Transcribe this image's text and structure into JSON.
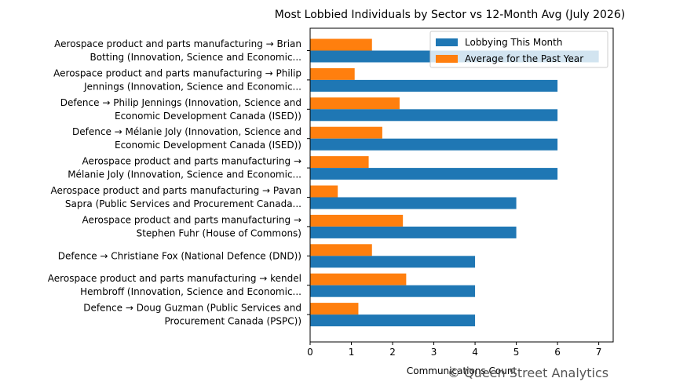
{
  "chart_data": {
    "type": "bar",
    "orientation": "horizontal",
    "title": "Most Lobbied Individuals by Sector vs 12-Month Avg (July 2026)",
    "xlabel": "Communications Count",
    "ylabel": "",
    "xlim": [
      0,
      7.35
    ],
    "xticks": [
      0,
      1,
      2,
      3,
      4,
      5,
      6,
      7
    ],
    "grid": false,
    "legend_position": "top-right",
    "categories": [
      [
        "Aerospace product and parts manufacturing → Brian",
        "Botting (Innovation, Science and Economic..."
      ],
      [
        "Aerospace product and parts manufacturing → Philip",
        "Jennings (Innovation, Science and Economic..."
      ],
      [
        "Defence → Philip Jennings (Innovation, Science and",
        "Economic Development Canada (ISED))"
      ],
      [
        "Defence → Mélanie Joly (Innovation, Science and",
        "Economic Development Canada (ISED))"
      ],
      [
        "Aerospace product and parts manufacturing →",
        "Mélanie Joly (Innovation, Science and Economic..."
      ],
      [
        "Aerospace product and parts manufacturing → Pavan",
        "Sapra (Public Services and Procurement Canada..."
      ],
      [
        "Aerospace product and parts manufacturing →",
        "Stephen Fuhr (House of Commons)"
      ],
      [
        "Defence → Christiane Fox (National Defence (DND))"
      ],
      [
        "Aerospace product and parts manufacturing → kendel",
        "Hembroff (Innovation, Science and Economic..."
      ],
      [
        "Defence → Doug  Guzman (Public Services and",
        "Procurement Canada (PSPC))"
      ]
    ],
    "series": [
      {
        "name": "Lobbying This Month",
        "color": "#1f77b4",
        "values": [
          7,
          6,
          6,
          6,
          6,
          5,
          5,
          4,
          4,
          4
        ]
      },
      {
        "name": "Average for the Past Year",
        "color": "#ff7f0e",
        "values": [
          1.5,
          1.08,
          2.17,
          1.75,
          1.42,
          0.67,
          2.25,
          1.5,
          2.33,
          1.17
        ]
      }
    ]
  },
  "watermark": "© Queen Street Analytics"
}
